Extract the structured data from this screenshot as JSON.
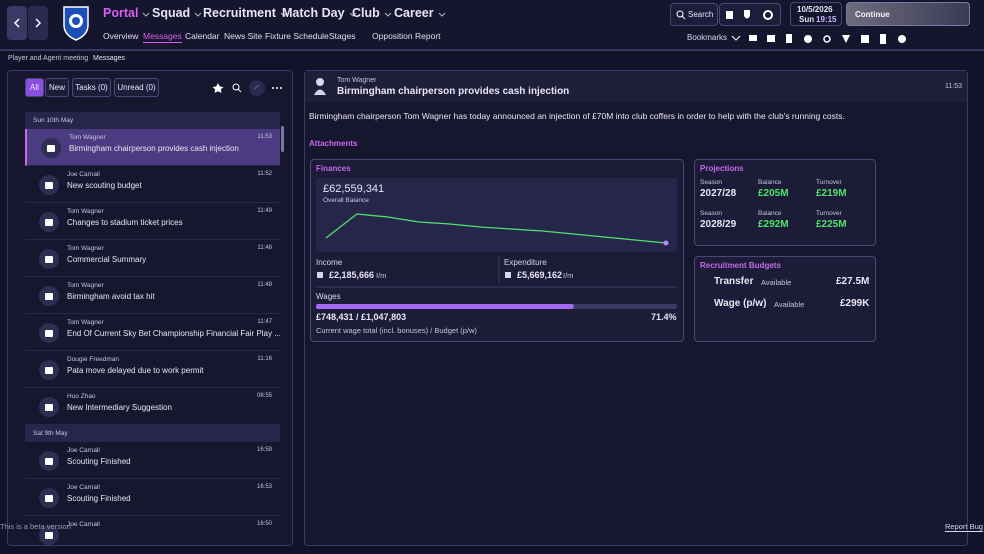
{
  "nav": {
    "menus": [
      "Portal",
      "Squad",
      "Recruitment",
      "Match Day",
      "Club",
      "Career"
    ],
    "submenu": [
      "Overview",
      "Messages",
      "Calendar",
      "News Site",
      "Fixture Schedule",
      "Stages",
      "Opposition Report"
    ],
    "search": "Search",
    "date": "10/5/2026",
    "day": "Sun",
    "time": "19:15",
    "continue": "Continue",
    "bookmarks": "Bookmarks"
  },
  "breadcrumb": [
    "Player and Agent meeting",
    "Messages"
  ],
  "filters": [
    "All",
    "New",
    "Tasks (0)",
    "Unread (0)"
  ],
  "messages": {
    "groups": [
      {
        "date": "Sun 10th May",
        "items": [
          {
            "sender": "Tom Wagner",
            "subject": "Birmingham chairperson provides cash injection",
            "time": "11:53"
          },
          {
            "sender": "Joe Carnall",
            "subject": "New scouting budget",
            "time": "11:52"
          },
          {
            "sender": "Tom Wagner",
            "subject": "Changes to stadium ticket prices",
            "time": "11:49"
          },
          {
            "sender": "Tom Wagner",
            "subject": "Commercial Summary",
            "time": "11:48"
          },
          {
            "sender": "Tom Wagner",
            "subject": "Birmingham avoid tax hit",
            "time": "11:48"
          },
          {
            "sender": "Tom Wagner",
            "subject": "End Of Current Sky Bet Championship Financial Fair Play ...",
            "time": "11:47"
          },
          {
            "sender": "Dougie Freedman",
            "subject": "Pata move delayed due to work permit",
            "time": "11:16"
          },
          {
            "sender": "Huo Zhao",
            "subject": "New Intermediary Suggestion",
            "time": "08:55"
          }
        ]
      },
      {
        "date": "Sat 9th May",
        "items": [
          {
            "sender": "Joe Carnall",
            "subject": "Scouting Finished",
            "time": "16:59"
          },
          {
            "sender": "Joe Carnall",
            "subject": "Scouting Finished",
            "time": "16:53"
          },
          {
            "sender": "Joe Carnall",
            "subject": "",
            "time": "16:50"
          }
        ]
      }
    ]
  },
  "detail": {
    "sender": "Tom Wagner",
    "subject": "Birmingham chairperson provides cash injection",
    "time": "11:53",
    "body": "Birmingham chairperson Tom Wagner has today announced an injection of £70M into club coffers in order to help with the club's running costs.",
    "attachments": "Attachments"
  },
  "finances": {
    "title": "Finances",
    "balance": "£62,559,341",
    "balance_label": "Overall Balance",
    "trend": {
      "values": [
        24,
        72,
        66,
        56,
        52,
        46,
        42,
        38,
        32,
        26,
        20,
        14
      ],
      "ylim": [
        0,
        100
      ]
    },
    "income_label": "Income",
    "income": "£2,185,666",
    "income_unit": "I/m",
    "expenditure_label": "Expenditure",
    "expenditure": "£5,669,162",
    "expenditure_unit": "I/m",
    "wages_label": "Wages",
    "wages": "£748,431 / £1,047,803",
    "wages_percent": 71.4,
    "wages_percent_label": "71.4%",
    "wages_note": "Current wage total (incl. bonuses) / Budget  (p/w)"
  },
  "projections": {
    "title": "Projections",
    "headers": [
      "Season",
      "Balance",
      "Turnover"
    ],
    "rows": [
      [
        "2027/28",
        "£205M",
        "£219M"
      ],
      [
        "2028/29",
        "£292M",
        "£225M"
      ]
    ]
  },
  "recruitment": {
    "title": "Recruitment Budgets",
    "rows": [
      [
        "Transfer",
        "Available",
        "£27.5M"
      ],
      [
        "Wage (p/w)",
        "Available",
        "£299K"
      ]
    ]
  },
  "footer": {
    "beta": "This is a beta version",
    "report": "Report Bug"
  }
}
